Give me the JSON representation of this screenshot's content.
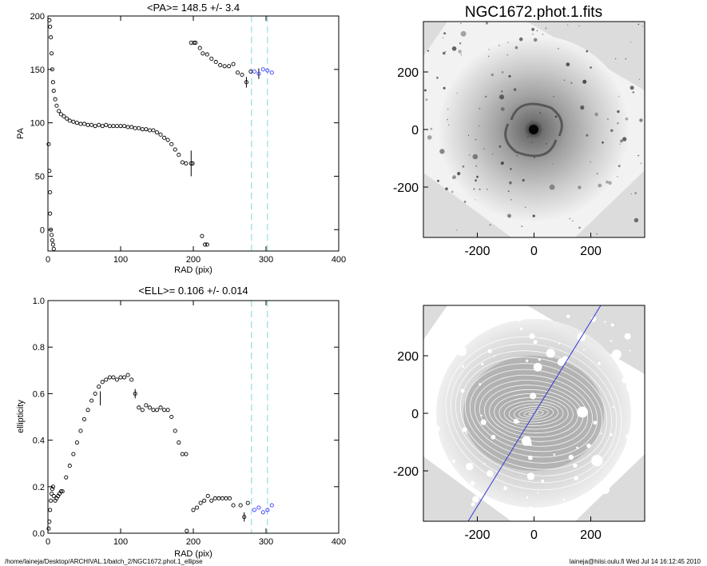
{
  "chart_data": [
    {
      "type": "scatter",
      "title": "<PA>= 148.5 +/-   3.4",
      "xlabel": "RAD (pix)",
      "ylabel": "PA",
      "xlim": [
        0,
        400
      ],
      "ylim": [
        -20,
        200
      ],
      "x_ticks": [
        "0",
        "100",
        "200",
        "300",
        "400"
      ],
      "y_ticks": [
        "0",
        "50",
        "100",
        "150",
        "200"
      ],
      "grid": false,
      "reference_lines": [
        {
          "x": 280,
          "style": "dashed",
          "color": "#7fd6de"
        },
        {
          "x": 302,
          "style": "dashed",
          "color": "#7fd6de"
        }
      ],
      "highlight_color": "#3a3aff",
      "series": [
        {
          "x": [
            2,
            3,
            4,
            5,
            6,
            7,
            8,
            10,
            12,
            15,
            18,
            22,
            26,
            30,
            35,
            40,
            45,
            50,
            55,
            60,
            65,
            70,
            75,
            80,
            85,
            90,
            95,
            100,
            105,
            110,
            115,
            120,
            125,
            130,
            135,
            140,
            145,
            150,
            155,
            160,
            165,
            170,
            175,
            180,
            185,
            190
          ],
          "y": [
            196,
            190,
            180,
            165,
            150,
            138,
            130,
            122,
            116,
            111,
            108,
            106,
            104,
            102,
            101,
            100,
            99,
            99,
            98,
            98,
            97,
            98,
            97,
            98,
            97,
            97,
            97,
            97,
            97,
            96,
            96,
            95,
            95,
            94,
            94,
            93,
            93,
            91,
            89,
            86,
            84,
            80,
            75,
            70,
            63,
            62
          ]
        },
        {
          "x": [
            1,
            2,
            3,
            3,
            4,
            5,
            6,
            7,
            8
          ],
          "y": [
            80,
            55,
            35,
            15,
            0,
            -5,
            -10,
            -14,
            -18
          ]
        },
        {
          "x": [
            197,
            199,
            201,
            212,
            216,
            219
          ],
          "y": [
            62,
            62,
            175,
            -6,
            -14,
            -14
          ]
        },
        {
          "x": [
            197,
            203,
            209,
            213,
            219,
            225,
            231,
            237,
            243,
            249,
            255,
            261,
            267,
            273,
            279
          ],
          "y": [
            175,
            175,
            170,
            165,
            164,
            160,
            157,
            154,
            153,
            153,
            155,
            147,
            145,
            138,
            148
          ]
        },
        {
          "x": [
            284,
            290,
            296,
            302,
            308
          ],
          "y": [
            148,
            146,
            150,
            149,
            147
          ]
        }
      ],
      "error_bars": [
        {
          "x": 197,
          "y": 62,
          "err": 12
        },
        {
          "x": 273,
          "y": 138,
          "err": 5
        },
        {
          "x": 290,
          "y": 146,
          "err": 5
        }
      ]
    },
    {
      "type": "scatter",
      "title": "<ELL>= 0.106 +/-  0.014",
      "xlabel": "RAD (pix)",
      "ylabel": "ellipticity",
      "xlim": [
        0,
        400
      ],
      "ylim": [
        0,
        1
      ],
      "x_ticks": [
        "0",
        "100",
        "200",
        "300",
        "400"
      ],
      "y_ticks": [
        "0.0",
        "0.2",
        "0.4",
        "0.6",
        "0.8",
        "1.0"
      ],
      "grid": false,
      "reference_lines": [
        {
          "x": 280,
          "style": "dashed",
          "color": "#7fd6de"
        },
        {
          "x": 302,
          "style": "dashed",
          "color": "#7fd6de"
        }
      ],
      "highlight_color": "#3a3aff",
      "series": [
        {
          "x": [
            1,
            2,
            3,
            4,
            5,
            6,
            7,
            8,
            10,
            12,
            14,
            16,
            18,
            20,
            25,
            30,
            35,
            40,
            45,
            50,
            55,
            60,
            65,
            70,
            75,
            80,
            85,
            90,
            95,
            100,
            105,
            110,
            115,
            120,
            125,
            130,
            135,
            140,
            145,
            150,
            155,
            160,
            165,
            170,
            175,
            180,
            185,
            190
          ],
          "y": [
            0.02,
            0.05,
            0.1,
            0.14,
            0.17,
            0.19,
            0.2,
            0.16,
            0.14,
            0.15,
            0.16,
            0.17,
            0.18,
            0.18,
            0.24,
            0.29,
            0.34,
            0.39,
            0.44,
            0.49,
            0.53,
            0.57,
            0.6,
            0.63,
            0.65,
            0.66,
            0.67,
            0.67,
            0.66,
            0.67,
            0.67,
            0.68,
            0.66,
            0.6,
            0.54,
            0.53,
            0.55,
            0.54,
            0.53,
            0.53,
            0.54,
            0.53,
            0.53,
            0.5,
            0.44,
            0.39,
            0.34,
            0.34
          ]
        },
        {
          "x": [
            191,
            200,
            205,
            210,
            215,
            220,
            225,
            230,
            235,
            240,
            245,
            250,
            255,
            265,
            270,
            275
          ],
          "y": [
            0.01,
            0.1,
            0.11,
            0.13,
            0.14,
            0.16,
            0.14,
            0.15,
            0.15,
            0.15,
            0.15,
            0.15,
            0.12,
            0.12,
            0.07,
            0.13
          ]
        },
        {
          "x": [
            284,
            290,
            296,
            302,
            308
          ],
          "y": [
            0.1,
            0.11,
            0.09,
            0.1,
            0.12
          ]
        }
      ],
      "error_bars": [
        {
          "x": 72,
          "y": 0.58,
          "err": 0.03
        },
        {
          "x": 120,
          "y": 0.6,
          "err": 0.02
        },
        {
          "x": 270,
          "y": 0.07,
          "err": 0.02
        }
      ]
    },
    {
      "type": "image",
      "title": "NGC1672.phot.1.fits",
      "xlim": [
        -390,
        390
      ],
      "ylim": [
        -375,
        375
      ],
      "x_ticks": [
        "-200",
        "0",
        "200"
      ],
      "y_ticks": [
        "-200",
        "0",
        "200"
      ]
    },
    {
      "type": "image",
      "title": "",
      "xlim": [
        -390,
        390
      ],
      "ylim": [
        -375,
        375
      ],
      "x_ticks": [
        "-200",
        "0",
        "200"
      ],
      "y_ticks": [
        "-200",
        "0",
        "200"
      ],
      "overlay_line_color": "#3333dd"
    }
  ],
  "footer": {
    "left": "/home/laineja/Desktop/ARCHIVAL.1/batch_2/NGC1672.phot.1_ellipse",
    "right": "laineja@hiisi.oulu.fi  Wed Jul 14 16:12:45 2010"
  }
}
